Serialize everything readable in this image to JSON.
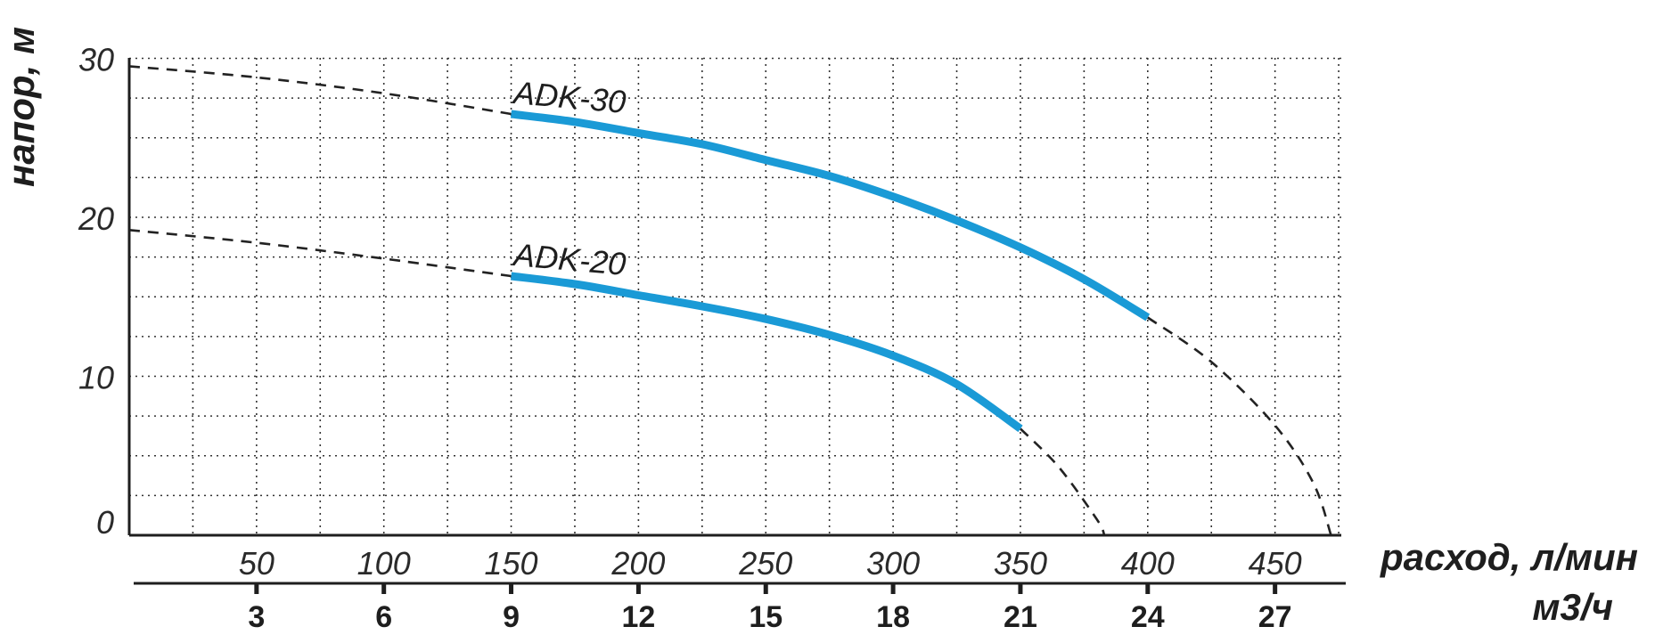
{
  "chart_data": {
    "type": "line",
    "title": "",
    "ylabel": "напор, м",
    "xlabel": "расход, л/мин",
    "xlabel_secondary": "м3/ч",
    "ylim": [
      0,
      30
    ],
    "xlim": [
      0,
      475
    ],
    "y_ticks": [
      "0",
      "10",
      "20",
      "30"
    ],
    "x_ticks": [
      {
        "value": 50,
        "label": "50",
        "m3h": "3"
      },
      {
        "value": 100,
        "label": "100",
        "m3h": "6"
      },
      {
        "value": 150,
        "label": "150",
        "m3h": "9"
      },
      {
        "value": 200,
        "label": "200",
        "m3h": "12"
      },
      {
        "value": 250,
        "label": "250",
        "m3h": "15"
      },
      {
        "value": 300,
        "label": "300",
        "m3h": "18"
      },
      {
        "value": 350,
        "label": "350",
        "m3h": "21"
      },
      {
        "value": 400,
        "label": "400",
        "m3h": "24"
      },
      {
        "value": 450,
        "label": "450",
        "m3h": "27"
      }
    ],
    "grid": true,
    "colors": {
      "curve": "#1a9ad6",
      "extrapolation": "#222222",
      "axis": "#1e1e1e",
      "grid": "#333333"
    },
    "series": [
      {
        "name": "ADK-30",
        "values": [
          [
            150,
            26.5
          ],
          [
            175,
            26.0
          ],
          [
            200,
            25.3
          ],
          [
            225,
            24.6
          ],
          [
            250,
            23.6
          ],
          [
            275,
            22.6
          ],
          [
            300,
            21.3
          ],
          [
            325,
            19.8
          ],
          [
            350,
            18.1
          ],
          [
            375,
            16.1
          ],
          [
            400,
            13.7
          ]
        ],
        "extrapolation": [
          [
            0,
            29.5
          ],
          [
            50,
            28.8
          ],
          [
            100,
            27.8
          ],
          [
            150,
            26.5
          ],
          [
            400,
            13.7
          ],
          [
            425,
            10.9
          ],
          [
            450,
            6.9
          ],
          [
            465,
            3.3
          ],
          [
            472,
            0
          ]
        ]
      },
      {
        "name": "ADK-20",
        "values": [
          [
            150,
            16.3
          ],
          [
            175,
            15.8
          ],
          [
            200,
            15.1
          ],
          [
            225,
            14.4
          ],
          [
            250,
            13.6
          ],
          [
            275,
            12.6
          ],
          [
            300,
            11.3
          ],
          [
            325,
            9.5
          ],
          [
            350,
            6.7
          ]
        ],
        "extrapolation": [
          [
            0,
            19.2
          ],
          [
            50,
            18.4
          ],
          [
            100,
            17.4
          ],
          [
            150,
            16.3
          ],
          [
            350,
            6.7
          ],
          [
            365,
            4.3
          ],
          [
            380,
            1.0
          ],
          [
            383,
            0
          ]
        ]
      }
    ]
  }
}
